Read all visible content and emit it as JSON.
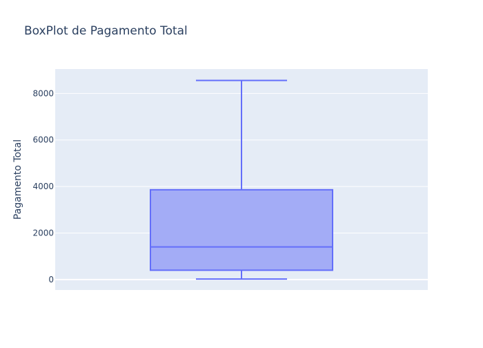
{
  "chart_data": {
    "type": "box",
    "title": "BoxPlot de Pagamento Total",
    "xlabel": "",
    "ylabel": "Pagamento Total",
    "ylim": [
      -450,
      9050
    ],
    "yticks": [
      0,
      2000,
      4000,
      6000,
      8000
    ],
    "grid": true,
    "legend": "none",
    "box": {
      "min": 20,
      "q1": 400,
      "median": 1400,
      "q3": 3860,
      "max": 8560
    },
    "colors": {
      "box_fill": "#a3acf6",
      "box_line": "#636efa",
      "plot_bg": "#e5ecf6",
      "grid": "#ffffff",
      "text": "#2a3f5f"
    }
  }
}
